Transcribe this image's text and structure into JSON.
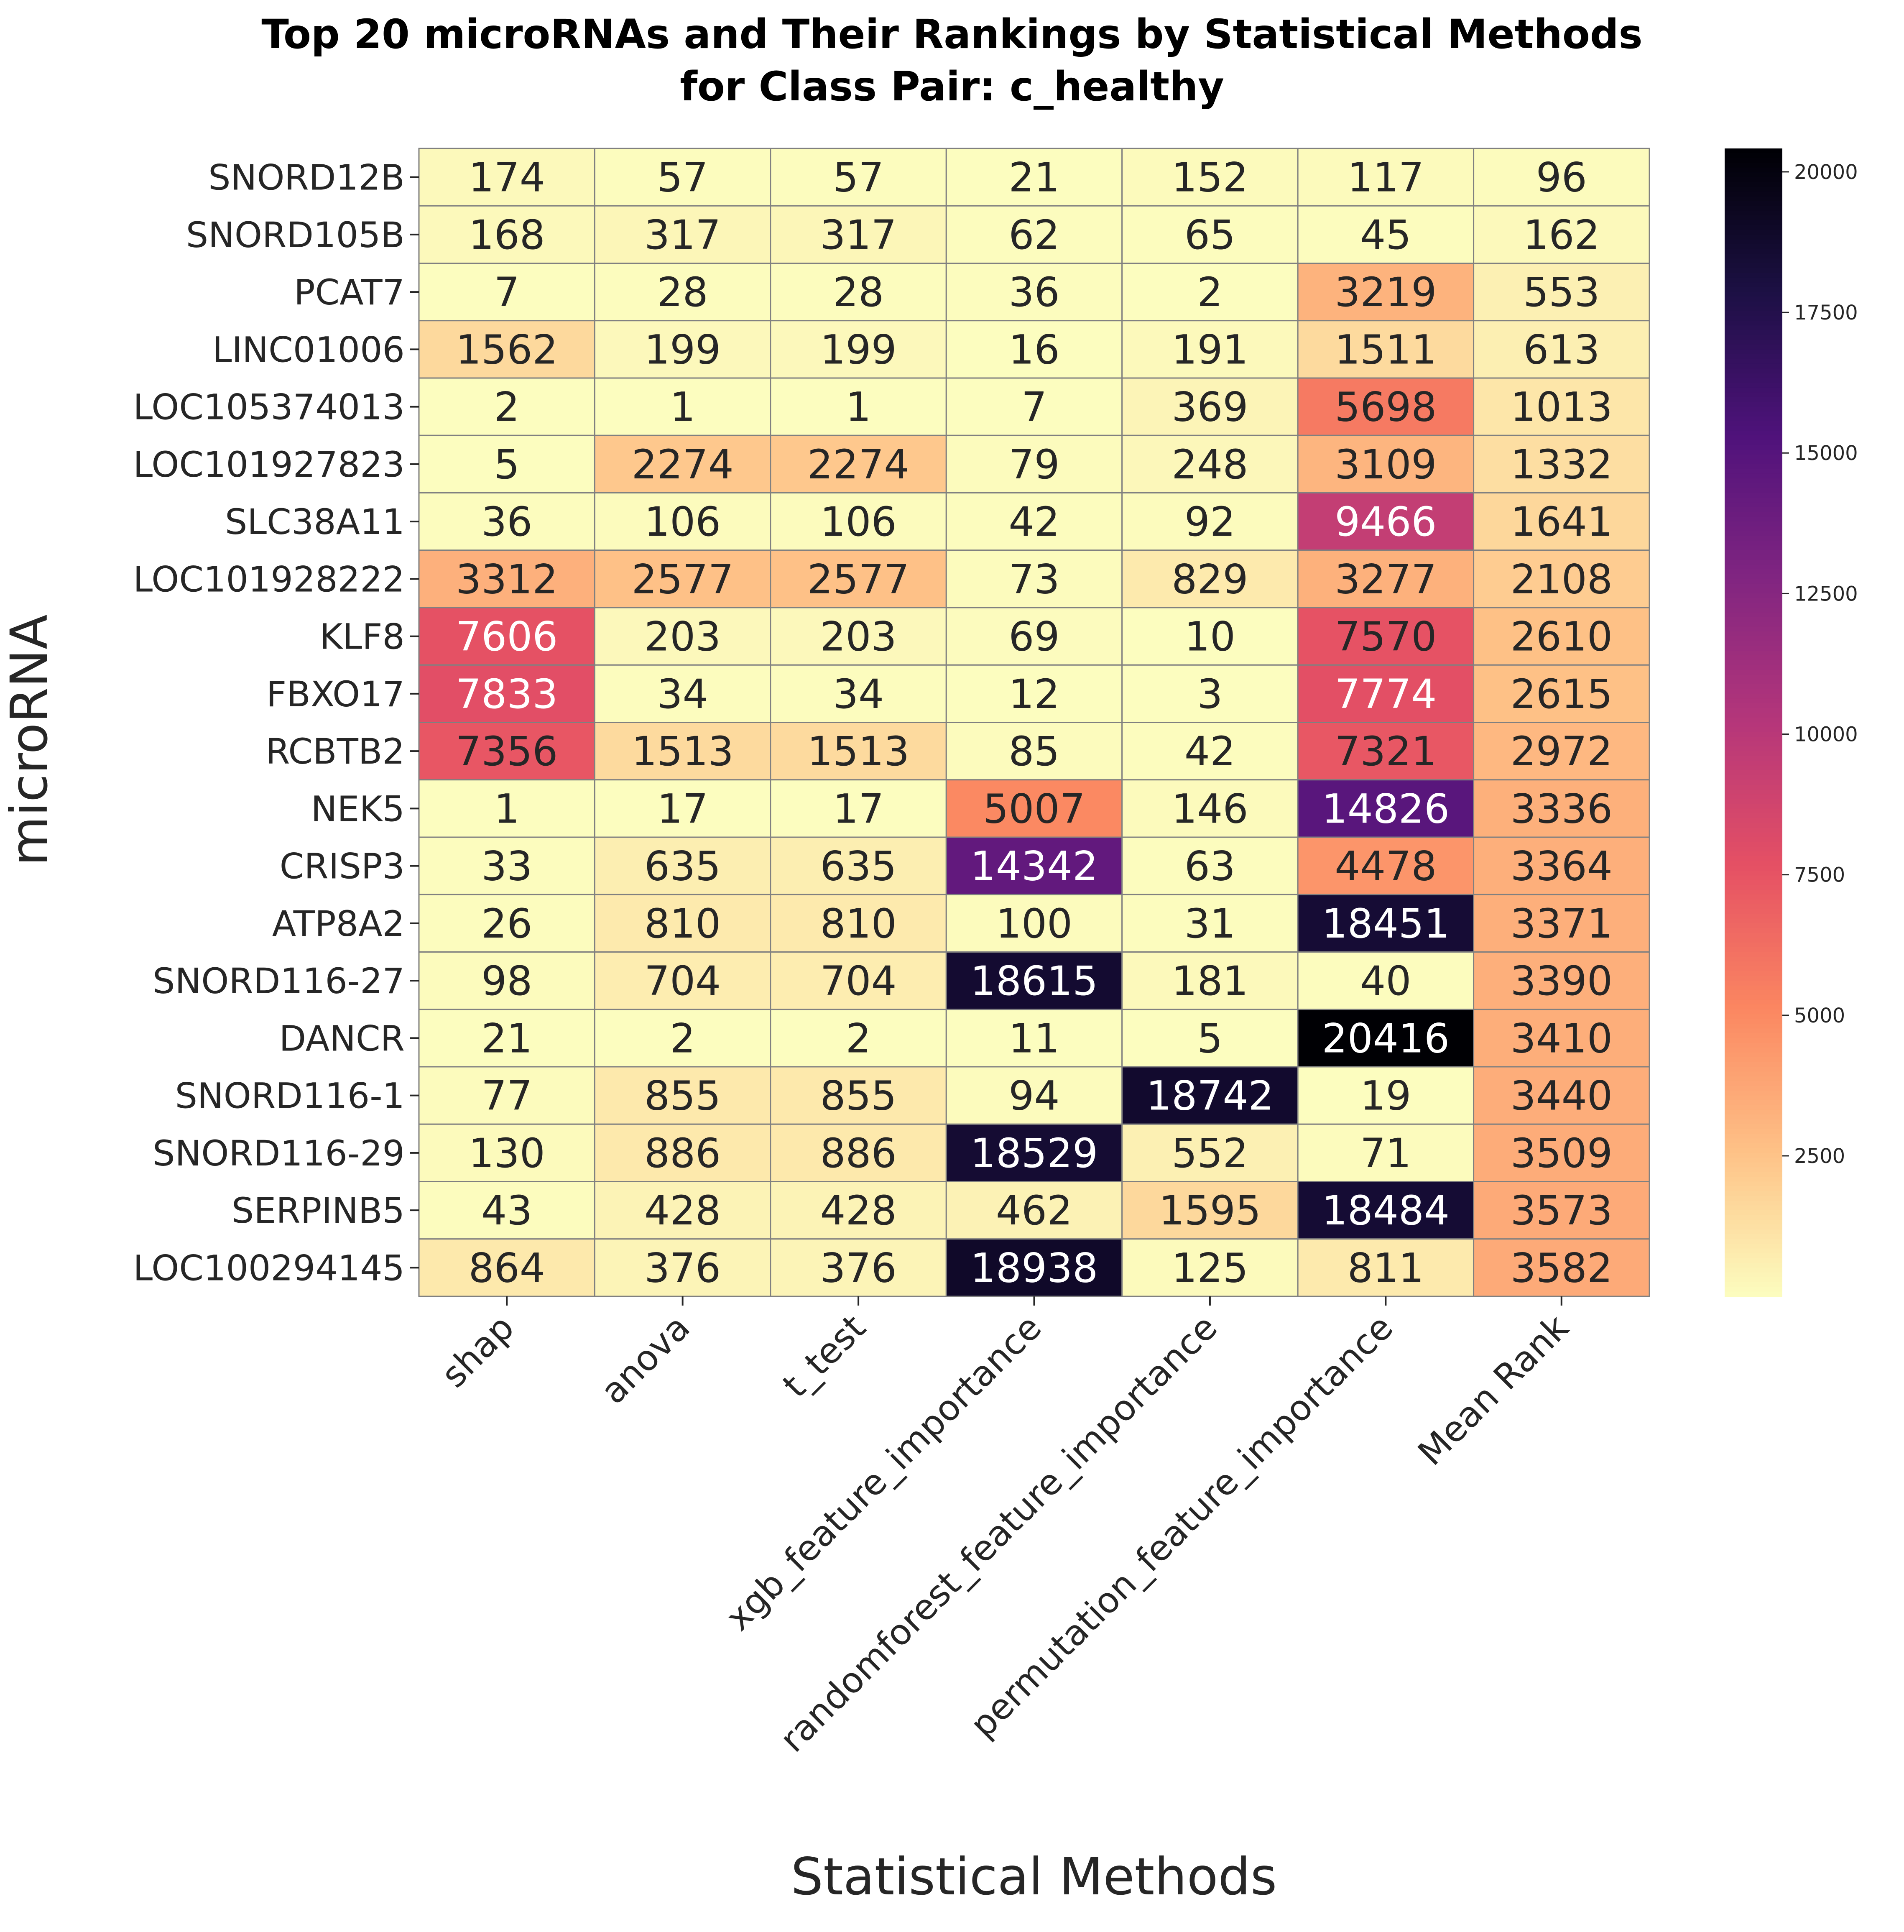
{
  "chart_data": {
    "type": "heatmap",
    "title": "Top 20 microRNAs and Their Rankings by Statistical Methods",
    "subtitle": "for Class Pair: c_healthy",
    "xlabel": "Statistical Methods",
    "ylabel": "microRNA",
    "columns": [
      "shap",
      "anova",
      "t_test",
      "xgb_feature_importance",
      "randomforest_feature_importance",
      "permutation_feature_importance",
      "Mean Rank"
    ],
    "rows": [
      "SNORD12B",
      "SNORD105B",
      "PCAT7",
      "LINC01006",
      "LOC105374013",
      "LOC101927823",
      "SLC38A11",
      "LOC101928222",
      "KLF8",
      "FBXO17",
      "RCBTB2",
      "NEK5",
      "CRISP3",
      "ATP8A2",
      "SNORD116-27",
      "DANCR",
      "SNORD116-1",
      "SNORD116-29",
      "SERPINB5",
      "LOC100294145"
    ],
    "values": [
      [
        174,
        57,
        57,
        21,
        152,
        117,
        96
      ],
      [
        168,
        317,
        317,
        62,
        65,
        45,
        162
      ],
      [
        7,
        28,
        28,
        36,
        2,
        3219,
        553
      ],
      [
        1562,
        199,
        199,
        16,
        191,
        1511,
        613
      ],
      [
        2,
        1,
        1,
        7,
        369,
        5698,
        1013
      ],
      [
        5,
        2274,
        2274,
        79,
        248,
        3109,
        1332
      ],
      [
        36,
        106,
        106,
        42,
        92,
        9466,
        1641
      ],
      [
        3312,
        2577,
        2577,
        73,
        829,
        3277,
        2108
      ],
      [
        7606,
        203,
        203,
        69,
        10,
        7570,
        2610
      ],
      [
        7833,
        34,
        34,
        12,
        3,
        7774,
        2615
      ],
      [
        7356,
        1513,
        1513,
        85,
        42,
        7321,
        2972
      ],
      [
        1,
        17,
        17,
        5007,
        146,
        14826,
        3336
      ],
      [
        33,
        635,
        635,
        14342,
        63,
        4478,
        3364
      ],
      [
        26,
        810,
        810,
        100,
        31,
        18451,
        3371
      ],
      [
        98,
        704,
        704,
        18615,
        181,
        40,
        3390
      ],
      [
        21,
        2,
        2,
        11,
        5,
        20416,
        3410
      ],
      [
        77,
        855,
        855,
        94,
        18742,
        19,
        3440
      ],
      [
        130,
        886,
        886,
        18529,
        552,
        71,
        3509
      ],
      [
        43,
        428,
        428,
        462,
        1595,
        18484,
        3573
      ],
      [
        864,
        376,
        376,
        18938,
        125,
        811,
        3582
      ]
    ],
    "colormap": "magma_r",
    "vmin": 1,
    "vmax": 20416,
    "colorbar_ticks": [
      "2500",
      "5000",
      "7500",
      "10000",
      "12500",
      "15000",
      "17500",
      "20000"
    ],
    "grid_line_color": "#808080"
  }
}
